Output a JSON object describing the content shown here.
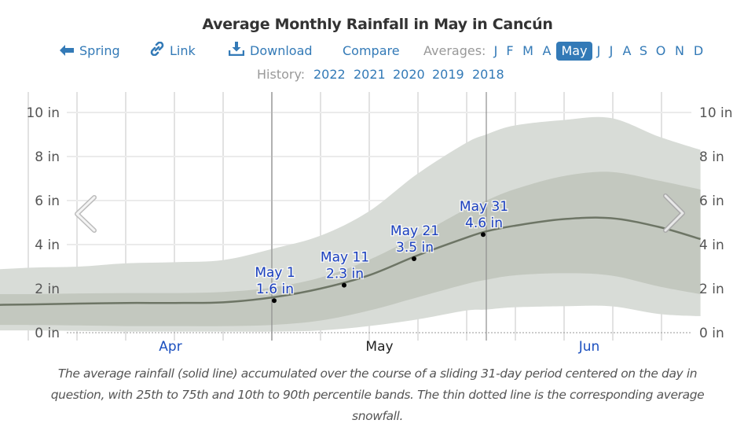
{
  "title": "Average Monthly Rainfall in May in Cancún",
  "nav": {
    "prev_label": "Spring",
    "link_label": "Link",
    "download_label": "Download",
    "compare_label": "Compare",
    "averages_label": "Averages:",
    "months": [
      "J",
      "F",
      "M",
      "A",
      "May",
      "J",
      "J",
      "A",
      "S",
      "O",
      "N",
      "D"
    ],
    "active_month_index": 4,
    "icons": {
      "prev": "arrow-left-icon",
      "link": "link-icon",
      "download": "download-icon"
    }
  },
  "history": {
    "label": "History:",
    "years": [
      "2022",
      "2021",
      "2020",
      "2019",
      "2018"
    ]
  },
  "colors": {
    "accent": "#337ab7",
    "band_outer": "#d8dcd7",
    "band_inner": "#bfc4bb",
    "line": "#6d7565",
    "annotation_text": "#1a3fbf"
  },
  "chart_data": {
    "type": "area",
    "title": "Average Monthly Rainfall in May in Cancún",
    "xlabel": "",
    "ylabel": "",
    "x_unit": "day offset from May 1",
    "xlim": [
      -44,
      62
    ],
    "ylim": [
      0,
      10
    ],
    "y_ticks": [
      0,
      2,
      4,
      6,
      8,
      10
    ],
    "y_tick_labels": [
      "0 in",
      "2 in",
      "4 in",
      "6 in",
      "8 in",
      "10 in"
    ],
    "x_month_labels": [
      {
        "label": "Apr",
        "day": -15,
        "highlight": false
      },
      {
        "label": "May",
        "day": 15,
        "highlight": true
      },
      {
        "label": "Jun",
        "day": 45.5,
        "highlight": false
      }
    ],
    "month_boundaries": [
      0,
      31
    ],
    "grid": true,
    "x": [
      -44,
      -35,
      -28,
      -21,
      -14,
      -7,
      0,
      7,
      14,
      21,
      28,
      31,
      35,
      42,
      49,
      56,
      62
    ],
    "series": [
      {
        "name": "average",
        "values": [
          1.25,
          1.28,
          1.32,
          1.35,
          1.35,
          1.38,
          1.6,
          2.0,
          2.6,
          3.5,
          4.3,
          4.6,
          4.85,
          5.15,
          5.2,
          4.8,
          4.25
        ]
      },
      {
        "name": "p25",
        "values": [
          0.35,
          0.35,
          0.33,
          0.3,
          0.3,
          0.3,
          0.35,
          0.55,
          1.0,
          1.6,
          2.2,
          2.4,
          2.6,
          2.7,
          2.6,
          2.1,
          1.75
        ]
      },
      {
        "name": "p75",
        "values": [
          1.75,
          1.75,
          1.78,
          1.8,
          1.8,
          1.85,
          2.05,
          2.5,
          3.3,
          4.4,
          5.6,
          6.0,
          6.5,
          7.1,
          7.3,
          6.9,
          6.5
        ]
      },
      {
        "name": "p10",
        "values": [
          0.1,
          0.1,
          0.08,
          0.05,
          0.05,
          0.05,
          0.05,
          0.1,
          0.3,
          0.6,
          1.0,
          1.05,
          1.15,
          1.2,
          1.2,
          0.85,
          0.75
        ]
      },
      {
        "name": "p90",
        "values": [
          2.8,
          2.95,
          3.0,
          3.15,
          3.2,
          3.3,
          3.8,
          4.4,
          5.5,
          7.2,
          8.6,
          9.0,
          9.4,
          9.65,
          9.75,
          8.9,
          8.3
        ]
      }
    ],
    "annotations": [
      {
        "label": "May 1",
        "value_label": "1.6 in",
        "day": 0,
        "value": 1.6
      },
      {
        "label": "May 11",
        "value_label": "2.3 in",
        "day": 10,
        "value": 2.3
      },
      {
        "label": "May 21",
        "value_label": "3.5 in",
        "day": 20,
        "value": 3.5
      },
      {
        "label": "May 31",
        "value_label": "4.6 in",
        "day": 30,
        "value": 4.6
      }
    ]
  },
  "chart_nav": {
    "prev_icon": "chevron-left-icon",
    "next_icon": "chevron-right-icon"
  },
  "caption": "The average rainfall (solid line) accumulated over the course of a sliding 31-day period centered on the day in question, with 25th to 75th and 10th to 90th percentile bands. The thin dotted line is the corresponding average snowfall."
}
